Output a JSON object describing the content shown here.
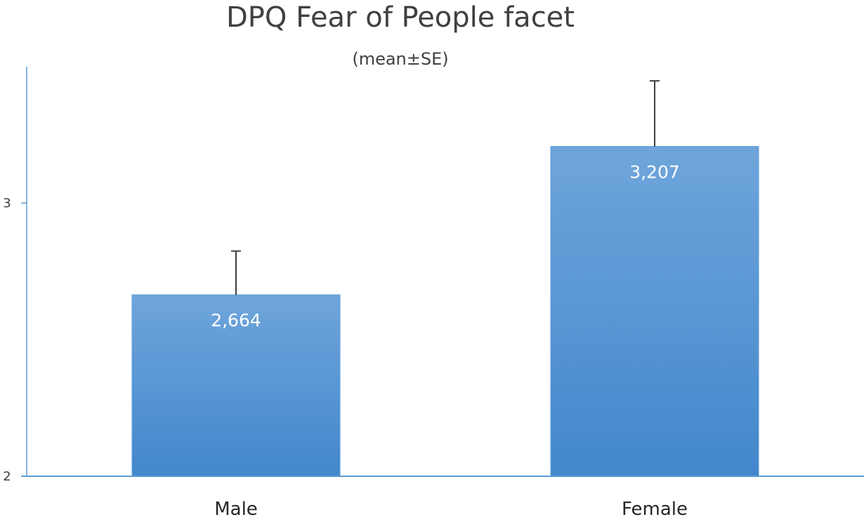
{
  "chart_data": {
    "type": "bar",
    "title": "DPQ Fear of People facet",
    "subtitle": "(mean±SE)",
    "categories": [
      "Male",
      "Female"
    ],
    "values": [
      2.664,
      3.207
    ],
    "value_labels": [
      "2,664",
      "3,207"
    ],
    "error_plus": [
      0.16,
      0.24
    ],
    "ylim": [
      2,
      3.5
    ],
    "yticks": [
      2,
      3
    ],
    "ytick_labels": [
      "2",
      "3"
    ],
    "xlabel": "",
    "ylabel": "",
    "grid": false,
    "legend": "none",
    "colors": {
      "bar_top": "#6fa5db",
      "bar_bottom": "#4287cc",
      "bar_edge": "#5b9bd5",
      "axis": "#5b9bd5",
      "error_bar": "#404040"
    }
  }
}
